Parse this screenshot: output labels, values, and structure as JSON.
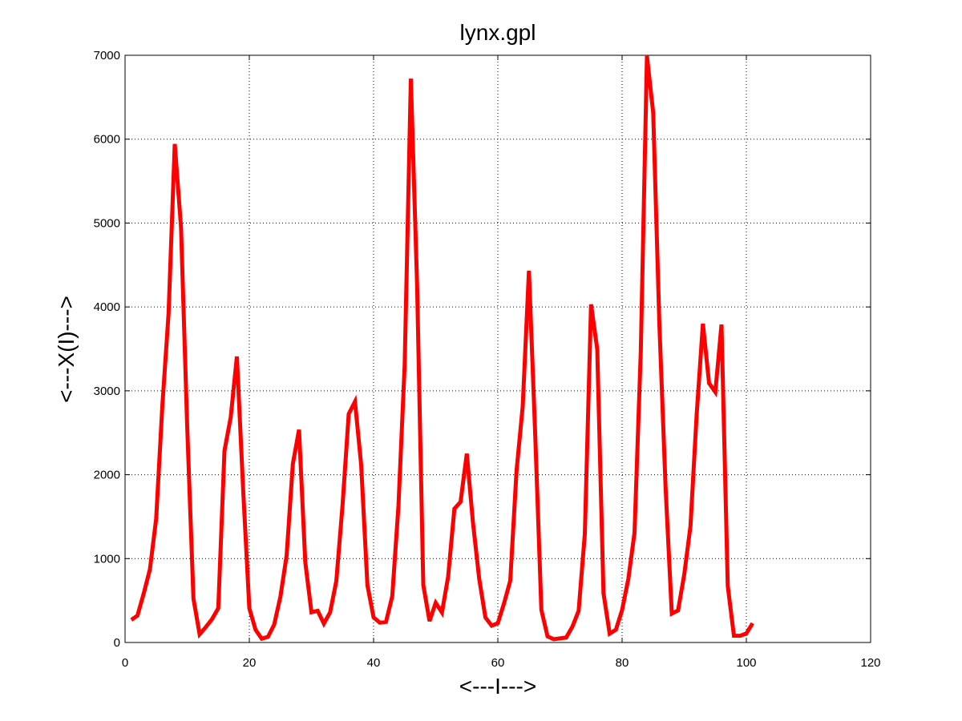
{
  "chart_data": {
    "type": "line",
    "title": "lynx.gpl",
    "xlabel": "<---I--->",
    "ylabel": "<---X(I)--->",
    "xlim": [
      0,
      120
    ],
    "ylim": [
      0,
      7000
    ],
    "xticks": [
      0,
      20,
      40,
      60,
      80,
      100,
      120
    ],
    "yticks": [
      0,
      1000,
      2000,
      3000,
      4000,
      5000,
      6000,
      7000
    ],
    "xtick_labels": [
      "0",
      "20",
      "40",
      "60",
      "80",
      "100",
      "120"
    ],
    "ytick_labels": [
      "0",
      "1000",
      "2000",
      "3000",
      "4000",
      "5000",
      "6000",
      "7000"
    ],
    "grid": true,
    "series": [
      {
        "color": "#ff0000",
        "x": [
          1,
          2,
          3,
          4,
          5,
          6,
          7,
          8,
          9,
          10,
          11,
          12,
          13,
          14,
          15,
          16,
          17,
          18,
          19,
          20,
          21,
          22,
          23,
          24,
          25,
          26,
          27,
          28,
          29,
          30,
          31,
          32,
          33,
          34,
          35,
          36,
          37,
          38,
          39,
          40,
          41,
          42,
          43,
          44,
          45,
          46,
          47,
          48,
          49,
          50,
          51,
          52,
          53,
          54,
          55,
          56,
          57,
          58,
          59,
          60,
          61,
          62,
          63,
          64,
          65,
          66,
          67,
          68,
          69,
          70,
          71,
          72,
          73,
          74,
          75,
          76,
          77,
          78,
          79,
          80,
          81,
          82,
          83,
          84,
          85,
          86,
          87,
          88,
          89,
          90,
          91,
          92,
          93,
          94,
          95,
          96,
          97,
          98,
          99,
          100,
          101
        ],
        "values": [
          269,
          321,
          585,
          871,
          1475,
          2821,
          3928,
          5943,
          4950,
          2577,
          523,
          98,
          184,
          279,
          409,
          2285,
          2685,
          3409,
          1824,
          409,
          151,
          45,
          68,
          213,
          546,
          1033,
          2129,
          2536,
          957,
          361,
          377,
          225,
          360,
          731,
          1638,
          2725,
          2871,
          2119,
          684,
          299,
          236,
          245,
          552,
          1623,
          3311,
          6721,
          4254,
          687,
          255,
          473,
          358,
          784,
          1594,
          1676,
          2251,
          1426,
          756,
          299,
          201,
          229,
          469,
          736,
          2042,
          2811,
          4431,
          2511,
          389,
          73,
          39,
          49,
          59,
          188,
          377,
          1292,
          4031,
          3495,
          587,
          105,
          153,
          387,
          758,
          1307,
          3465,
          6991,
          6313,
          3794,
          1836,
          345,
          382,
          808,
          1388,
          2713,
          3800,
          3091,
          2985,
          3790,
          674,
          81,
          80,
          108,
          229
        ]
      }
    ]
  }
}
